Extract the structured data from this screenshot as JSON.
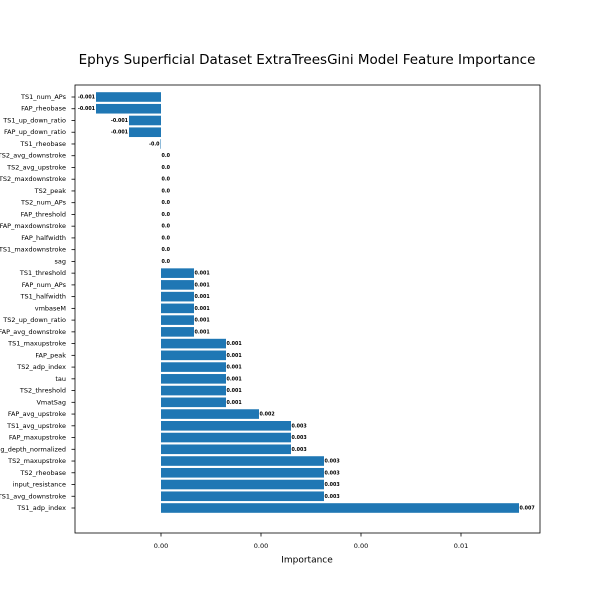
{
  "chart_data": {
    "type": "barh",
    "title": "Ephys Superficial Dataset ExtraTreesGini Model Feature Importance",
    "xlabel": "Importance",
    "color": "#1f77b4",
    "categories": [
      "TS1_num_APs",
      "FAP_rheobase",
      "TS1_up_down_ratio",
      "FAP_up_down_ratio",
      "TS1_rheobase",
      "TS2_avg_downstroke",
      "TS2_avg_upstroke",
      "TS2_maxdownstroke",
      "TS2_peak",
      "TS2_num_APs",
      "FAP_threshold",
      "FAP_maxdownstroke",
      "FAP_halfwidth",
      "TS1_maxdownstroke",
      "sag",
      "TS1_threshold",
      "FAP_num_APs",
      "TS1_halfwidth",
      "vmbaseM",
      "TS2_up_down_ratio",
      "FAP_avg_downstroke",
      "TS1_maxupstroke",
      "FAP_peak",
      "TS2_adp_index",
      "tau",
      "TS2_threshold",
      "VmatSag",
      "FAP_avg_upstroke",
      "TS1_avg_upstroke",
      "FAP_maxupstroke",
      "sag_depth_normalized",
      "TS2_maxupstroke",
      "TS2_rheobase",
      "input_resistance",
      "TS1_avg_downstroke",
      "TS1_adp_index"
    ],
    "values": [
      -0.0013,
      -0.0013,
      -0.00064,
      -0.00064,
      -1e-05,
      0,
      0,
      0,
      0,
      0,
      0,
      0,
      0,
      0,
      0,
      0.00066,
      0.00066,
      0.00066,
      0.00066,
      0.00066,
      0.00066,
      0.0013,
      0.0013,
      0.0013,
      0.0013,
      0.0013,
      0.0013,
      0.00196,
      0.0026,
      0.0026,
      0.0026,
      0.00326,
      0.00326,
      0.00326,
      0.00326,
      0.00716
    ],
    "value_labels": [
      "-0.001",
      "-0.001",
      "-0.001",
      "-0.001",
      "-0.0",
      "0.0",
      "0.0",
      "0.0",
      "0.0",
      "0.0",
      "0.0",
      "0.0",
      "0.0",
      "0.0",
      "0.0",
      "0.001",
      "0.001",
      "0.001",
      "0.001",
      "0.001",
      "0.001",
      "0.001",
      "0.001",
      "0.001",
      "0.001",
      "0.001",
      "0.001",
      "0.002",
      "0.003",
      "0.003",
      "0.003",
      "0.003",
      "0.003",
      "0.003",
      "0.003",
      "0.007"
    ],
    "xlim": [
      -0.00172,
      0.00758
    ],
    "xticks": [
      {
        "value": 0,
        "label": "0.00"
      },
      {
        "value": 0.002,
        "label": "0.00"
      },
      {
        "value": 0.004,
        "label": "0.00"
      },
      {
        "value": 0.006,
        "label": "0.01"
      }
    ]
  }
}
